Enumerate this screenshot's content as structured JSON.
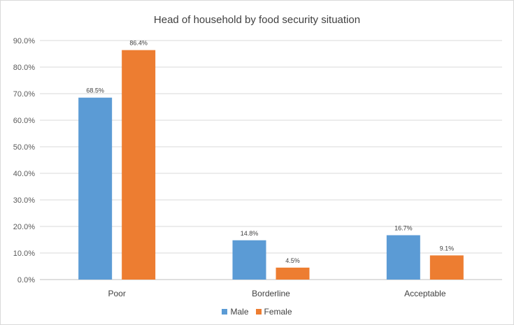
{
  "chart_data": {
    "type": "bar",
    "title": "Head of household by food security situation",
    "categories": [
      "Poor",
      "Borderline",
      "Acceptable"
    ],
    "series": [
      {
        "name": "Male",
        "values": [
          68.5,
          14.8,
          16.7
        ],
        "labels": [
          "68.5%",
          "14.8%",
          "16.7%"
        ],
        "color": "#5b9bd5"
      },
      {
        "name": "Female",
        "values": [
          86.4,
          4.5,
          9.1
        ],
        "labels": [
          "86.4%",
          "4.5%",
          "9.1%"
        ],
        "color": "#ed7d31"
      }
    ],
    "ylim": [
      0,
      90
    ],
    "yticks": [
      "0.0%",
      "10.0%",
      "20.0%",
      "30.0%",
      "40.0%",
      "50.0%",
      "60.0%",
      "70.0%",
      "80.0%",
      "90.0%"
    ],
    "grid": true,
    "legend_position": "bottom"
  }
}
